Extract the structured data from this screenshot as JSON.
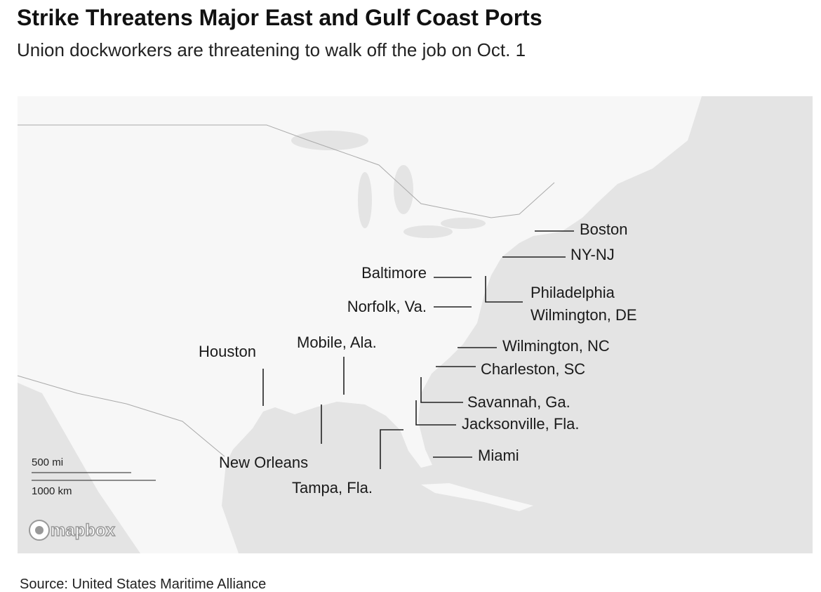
{
  "header": {
    "title": "Strike Threatens Major East and Gulf Coast Ports",
    "subtitle": "Union dockworkers are threatening to walk off the job on Oct. 1"
  },
  "map": {
    "ports": [
      {
        "label": "Boston"
      },
      {
        "label": "NY-NJ"
      },
      {
        "label": "Baltimore"
      },
      {
        "label": "Norfolk, Va."
      },
      {
        "label": "Philadelphia"
      },
      {
        "label": "Wilmington, DE"
      },
      {
        "label": "Houston"
      },
      {
        "label": "Mobile, Ala."
      },
      {
        "label": "New Orleans"
      },
      {
        "label": "Tampa, Fla."
      },
      {
        "label": "Wilmington, NC"
      },
      {
        "label": "Charleston, SC"
      },
      {
        "label": "Savannah, Ga."
      },
      {
        "label": "Jacksonville, Fla."
      },
      {
        "label": "Miami"
      }
    ],
    "scale": {
      "miles": "500 mi",
      "kilometers": "1000 km"
    },
    "attribution": "mapbox"
  },
  "footer": {
    "source": "Source: United States Maritime Alliance"
  }
}
